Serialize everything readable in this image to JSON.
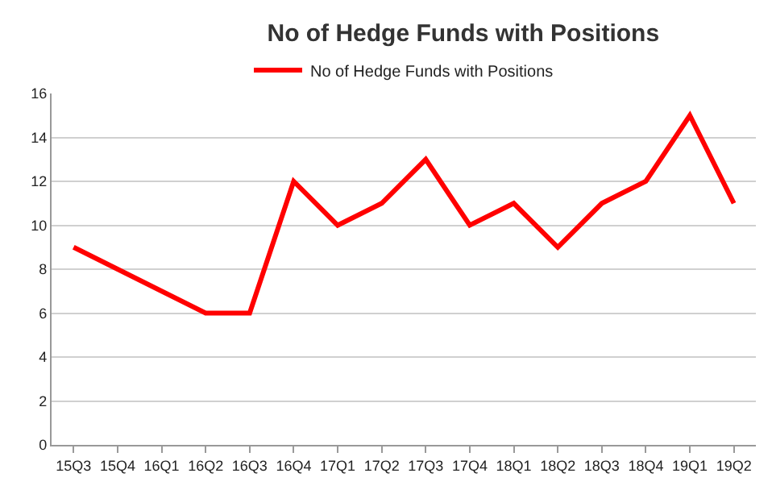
{
  "chart_data": {
    "type": "line",
    "title": "No of Hedge Funds with Positions",
    "categories": [
      "15Q3",
      "15Q4",
      "16Q1",
      "16Q2",
      "16Q3",
      "16Q4",
      "17Q1",
      "17Q2",
      "17Q3",
      "17Q4",
      "18Q1",
      "18Q2",
      "18Q3",
      "18Q4",
      "19Q1",
      "19Q2"
    ],
    "series": [
      {
        "name": "No of Hedge Funds with Positions",
        "color": "#ff0000",
        "values": [
          9,
          8,
          7,
          6,
          6,
          12,
          10,
          11,
          13,
          10,
          11,
          9,
          11,
          12,
          15,
          11
        ]
      }
    ],
    "ylim": [
      0,
      16
    ],
    "yticks": [
      0,
      2,
      4,
      6,
      8,
      10,
      12,
      14,
      16
    ],
    "grid": "y",
    "legend": "top",
    "marker": "none",
    "line_style": "solid"
  }
}
